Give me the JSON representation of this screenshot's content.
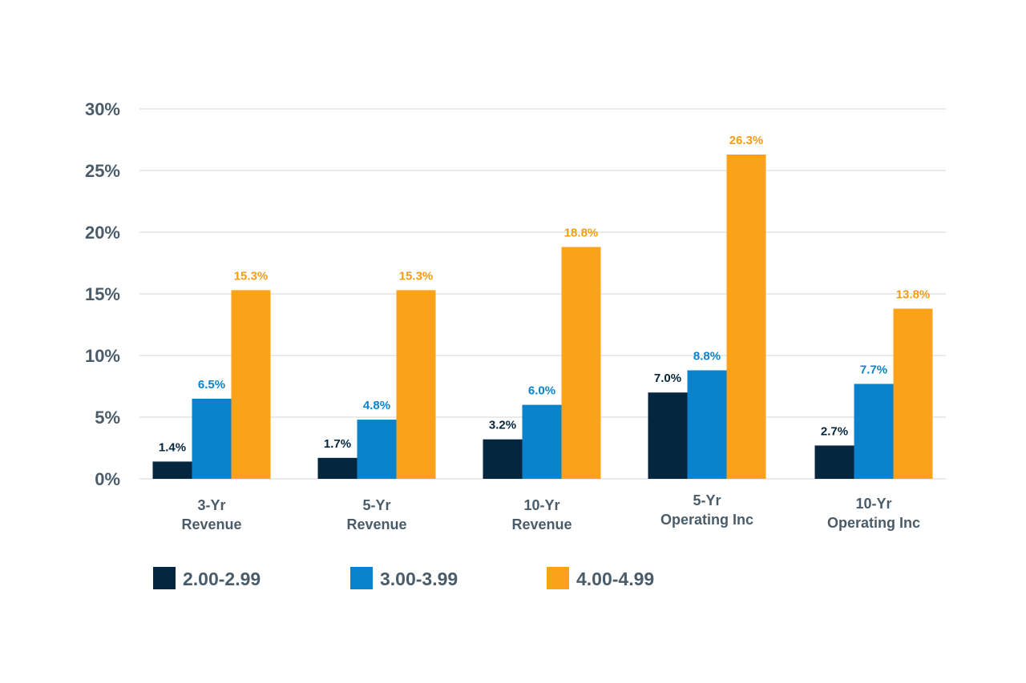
{
  "chart_data": {
    "type": "bar",
    "title": "",
    "xlabel": "",
    "ylabel": "",
    "ylim": [
      0,
      30
    ],
    "yticks": [
      0,
      5,
      10,
      15,
      20,
      25,
      30
    ],
    "ytick_labels": [
      "0%",
      "5%",
      "10%",
      "15%",
      "20%",
      "25%",
      "30%"
    ],
    "grid": true,
    "legend_position": "bottom-left",
    "categories": [
      [
        "3-Yr",
        "Revenue"
      ],
      [
        "5-Yr",
        "Revenue"
      ],
      [
        "10-Yr",
        "Revenue"
      ],
      [
        "5-Yr",
        "Operating Inc"
      ],
      [
        "10-Yr",
        "Operating Inc"
      ]
    ],
    "series": [
      {
        "name": "2.00-2.99",
        "color": "#04263f",
        "label_color": "#04263f",
        "values": [
          1.4,
          1.7,
          3.2,
          7.0,
          2.7
        ],
        "labels": [
          "1.4%",
          "1.7%",
          "3.2%",
          "7.0%",
          "2.7%"
        ]
      },
      {
        "name": "3.00-3.99",
        "color": "#0a83cc",
        "label_color": "#0a83cc",
        "values": [
          6.5,
          4.8,
          6.0,
          8.8,
          7.7
        ],
        "labels": [
          "6.5%",
          "4.8%",
          "6.0%",
          "8.8%",
          "7.7%"
        ]
      },
      {
        "name": "4.00-4.99",
        "color": "#fba21b",
        "label_color": "#f39c14",
        "values": [
          15.3,
          15.3,
          18.8,
          26.3,
          13.8
        ],
        "labels": [
          "15.3%",
          "15.3%",
          "18.8%",
          "26.3%",
          "13.8%"
        ]
      }
    ]
  }
}
